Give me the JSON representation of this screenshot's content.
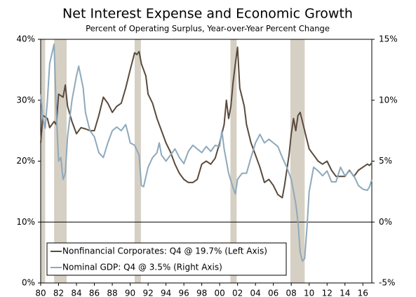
{
  "chart_data": {
    "type": "line",
    "title": "Net Interest Expense and Economic Growth",
    "subtitle": "Percent of Operating Surplus, Year-over-Year Percent Change",
    "xlim": [
      1980,
      2017
    ],
    "xticks": [
      {
        "value": 1980,
        "label": "80"
      },
      {
        "value": 1982,
        "label": "82"
      },
      {
        "value": 1984,
        "label": "84"
      },
      {
        "value": 1986,
        "label": "86"
      },
      {
        "value": 1988,
        "label": "88"
      },
      {
        "value": 1990,
        "label": "90"
      },
      {
        "value": 1992,
        "label": "92"
      },
      {
        "value": 1994,
        "label": "94"
      },
      {
        "value": 1996,
        "label": "96"
      },
      {
        "value": 1998,
        "label": "98"
      },
      {
        "value": 2000,
        "label": "00"
      },
      {
        "value": 2002,
        "label": "02"
      },
      {
        "value": 2004,
        "label": "04"
      },
      {
        "value": 2006,
        "label": "06"
      },
      {
        "value": 2008,
        "label": "08"
      },
      {
        "value": 2010,
        "label": "10"
      },
      {
        "value": 2012,
        "label": "12"
      },
      {
        "value": 2014,
        "label": "14"
      },
      {
        "value": 2016,
        "label": "16"
      }
    ],
    "ylim": [
      0,
      40
    ],
    "yticks": [
      {
        "value": 0,
        "label": "0%"
      },
      {
        "value": 10,
        "label": "10%"
      },
      {
        "value": 20,
        "label": "20%"
      },
      {
        "value": 30,
        "label": "30%"
      },
      {
        "value": 40,
        "label": "40%"
      }
    ],
    "y2lim": [
      -5,
      15
    ],
    "y2ticks": [
      {
        "value": -5,
        "label": "-5%"
      },
      {
        "value": 0,
        "label": "0%"
      },
      {
        "value": 5,
        "label": "5%"
      },
      {
        "value": 10,
        "label": "10%"
      },
      {
        "value": 15,
        "label": "15%"
      }
    ],
    "recessions": [
      [
        1980,
        1980.5
      ],
      [
        1981.5,
        1982.9
      ],
      [
        1990.5,
        1991.2
      ],
      [
        2001.2,
        2001.9
      ],
      [
        2007.9,
        2009.5
      ]
    ],
    "recession_color": "#d6d0c4",
    "series": [
      {
        "name": "Nonfinancial Corporates: Q4 @ 19.7% (Left Axis)",
        "color": "#5a4a3c",
        "axis": "y",
        "x": [
          1980,
          1980.25,
          1980.75,
          1981,
          1981.5,
          1981.75,
          1982,
          1982.5,
          1982.75,
          1983,
          1983.5,
          1984,
          1984.5,
          1985,
          1985.5,
          1986,
          1986.5,
          1987,
          1987.5,
          1988,
          1988.5,
          1989,
          1989.5,
          1990,
          1990.5,
          1990.75,
          1991,
          1991.25,
          1991.75,
          1992,
          1992.5,
          1993,
          1993.5,
          1994,
          1994.5,
          1995,
          1995.5,
          1996,
          1996.5,
          1997,
          1997.5,
          1998,
          1998.5,
          1999,
          1999.5,
          2000,
          2000.5,
          2000.75,
          2001,
          2001.25,
          2001.5,
          2001.75,
          2002,
          2002.25,
          2002.75,
          2003,
          2003.5,
          2004,
          2004.5,
          2005,
          2005.5,
          2006,
          2006.5,
          2007,
          2007.25,
          2007.5,
          2007.75,
          2008,
          2008.25,
          2008.5,
          2008.75,
          2009,
          2009.5,
          2010,
          2010.5,
          2011,
          2011.5,
          2012,
          2012.5,
          2013,
          2013.5,
          2014,
          2014.5,
          2015,
          2015.5,
          2016,
          2016.5,
          2016.75,
          2017
        ],
        "values": [
          23,
          27.5,
          27,
          25.5,
          26.5,
          26,
          31,
          30.5,
          32.5,
          29,
          26.5,
          24.5,
          25.5,
          25.3,
          25,
          25,
          27.5,
          30.5,
          29.5,
          28,
          29,
          29.5,
          32,
          35,
          37.8,
          37.5,
          38,
          36,
          34,
          31,
          29.5,
          27,
          25,
          23,
          21.5,
          19.5,
          18,
          17,
          16.5,
          16.5,
          17,
          19.5,
          20,
          19.5,
          20.5,
          23,
          26,
          30,
          27,
          29,
          33,
          36,
          38.7,
          32,
          29,
          26,
          23,
          21,
          19,
          16.5,
          17,
          16,
          14.5,
          14,
          16,
          18.5,
          21,
          24.5,
          27,
          25,
          27.5,
          28,
          25,
          22,
          21,
          20,
          19.5,
          20,
          18.5,
          17.5,
          17.5,
          17.5,
          18.5,
          17.5,
          18.5,
          19,
          19.5,
          19.3,
          19.7
        ]
      },
      {
        "name": "Nominal GDP: Q4 @ 3.5% (Right Axis)",
        "color": "#8ea9bc",
        "axis": "y2",
        "x": [
          1980,
          1980.25,
          1980.5,
          1980.75,
          1981,
          1981.5,
          1981.75,
          1982,
          1982.25,
          1982.5,
          1982.75,
          1983,
          1983.5,
          1984,
          1984.25,
          1984.75,
          1985,
          1985.5,
          1986,
          1986.5,
          1987,
          1987.5,
          1988,
          1988.5,
          1989,
          1989.5,
          1989.75,
          1990,
          1990.5,
          1991,
          1991.25,
          1991.5,
          1992,
          1992.5,
          1993,
          1993.25,
          1993.5,
          1994,
          1994.5,
          1995,
          1995.5,
          1996,
          1996.5,
          1997,
          1997.5,
          1998,
          1998.5,
          1999,
          1999.5,
          2000,
          2000.25,
          2000.5,
          2001,
          2001.5,
          2001.75,
          2002,
          2002.5,
          2003,
          2003.5,
          2004,
          2004.5,
          2005,
          2005.5,
          2006,
          2006.5,
          2007,
          2007.5,
          2008,
          2008.5,
          2008.75,
          2009,
          2009.25,
          2009.5,
          2009.75,
          2010,
          2010.5,
          2011,
          2011.5,
          2012,
          2012.5,
          2013,
          2013.5,
          2014,
          2014.5,
          2015,
          2015.5,
          2016,
          2016.5,
          2016.75,
          2017
        ],
        "values": [
          10.5,
          8.5,
          7.7,
          10,
          13,
          14.6,
          9,
          5,
          5.3,
          3.5,
          4,
          7,
          10,
          12,
          12.8,
          11,
          9,
          7.5,
          7,
          5.7,
          5.3,
          6.5,
          7.5,
          7.8,
          7.5,
          8,
          7.3,
          6.5,
          6.3,
          5.5,
          3,
          2.9,
          4.5,
          5.3,
          5.7,
          6.5,
          5.5,
          5,
          5.5,
          6,
          5.3,
          4.8,
          5.8,
          6.3,
          6,
          5.7,
          6.2,
          5.8,
          6.3,
          6.2,
          7.5,
          6,
          4,
          2.8,
          2.3,
          3.5,
          4,
          4,
          5.3,
          6.5,
          7.2,
          6.5,
          6.8,
          6.5,
          6.2,
          5.3,
          4.5,
          3.5,
          1.5,
          0,
          -2.5,
          -3.2,
          -3,
          -0.5,
          2.5,
          4.5,
          4.2,
          3.8,
          4.2,
          3.3,
          3.3,
          4.5,
          3.8,
          4.2,
          3.8,
          3,
          2.7,
          2.6,
          2.9,
          3.5
        ]
      }
    ]
  }
}
